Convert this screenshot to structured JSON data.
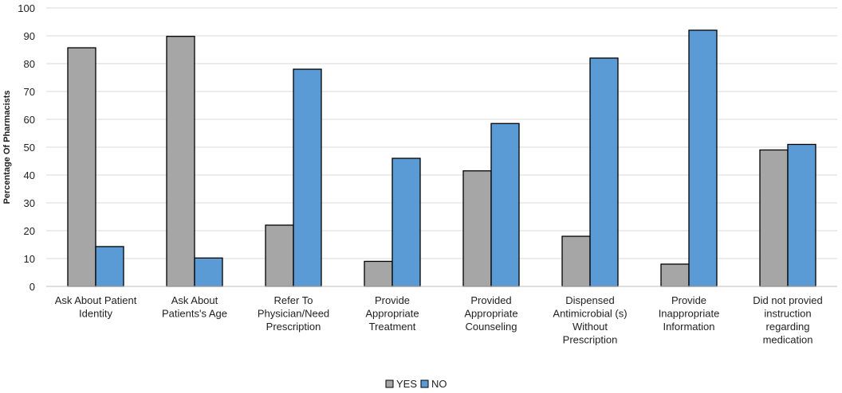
{
  "chart_data": {
    "type": "bar",
    "title": "",
    "xlabel": "",
    "ylabel": "Percentage Of Pharmacists",
    "ylim": [
      0,
      100
    ],
    "yticks": [
      0,
      10,
      20,
      30,
      40,
      50,
      60,
      70,
      80,
      90,
      100
    ],
    "grid": true,
    "legend_position": "bottom",
    "categories": [
      [
        "Ask About Patient",
        "Identity"
      ],
      [
        "Ask About",
        "Patients's Age"
      ],
      [
        "Refer To",
        "Physician/Need",
        "Prescription"
      ],
      [
        "Provide",
        "Appropriate",
        "Treatment"
      ],
      [
        "Provided",
        "Appropriate",
        "Counseling"
      ],
      [
        "Dispensed",
        "Antimicrobial (s)",
        "Without",
        "Prescription"
      ],
      [
        "Provide",
        "Inappropriate",
        "Information"
      ],
      [
        "Did not provied",
        "instruction",
        "regarding",
        "medication"
      ]
    ],
    "series": [
      {
        "name": "YES",
        "color": "#a6a6a6",
        "values": [
          85.7,
          89.8,
          22,
          9,
          41.5,
          18,
          8,
          49
        ]
      },
      {
        "name": "NO",
        "color": "#5b9bd5",
        "values": [
          14.3,
          10.2,
          78,
          46,
          58.5,
          82,
          92,
          51
        ]
      }
    ]
  }
}
